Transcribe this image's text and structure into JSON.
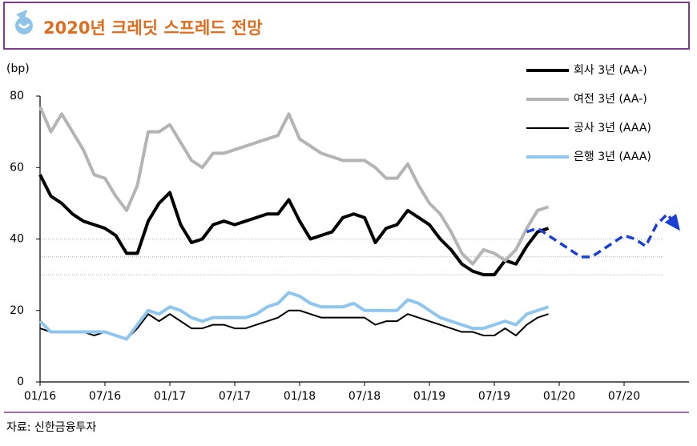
{
  "header": {
    "title": "2020년 크레딧 스프레드 전망"
  },
  "chart_data": {
    "type": "line",
    "y_label": "(bp)",
    "source": "자료: 신한금융투자",
    "categories": [
      "01/16",
      null,
      null,
      null,
      null,
      null,
      "07/16",
      null,
      null,
      null,
      null,
      null,
      "01/17",
      null,
      null,
      null,
      null,
      null,
      "07/17",
      null,
      null,
      null,
      null,
      null,
      "01/18",
      null,
      null,
      null,
      null,
      null,
      "07/18",
      null,
      null,
      null,
      null,
      null,
      "01/19",
      null,
      null,
      null,
      null,
      null,
      "07/19",
      null,
      null,
      null,
      null,
      null,
      "01/20",
      null,
      null,
      null,
      null,
      null,
      "07/20",
      null,
      null,
      null,
      null,
      null
    ],
    "ylim": [
      0,
      80
    ],
    "yticks": [
      0,
      20,
      40,
      60,
      80
    ],
    "ref_lines": [
      40,
      35,
      30
    ],
    "series": [
      {
        "name": "회사 3년 (AA-)",
        "color": "#000000",
        "values": [
          58,
          52,
          50,
          47,
          45,
          44,
          43,
          41,
          36,
          36,
          45,
          50,
          53,
          44,
          39,
          40,
          44,
          45,
          44,
          45,
          46,
          47,
          47,
          51,
          45,
          40,
          41,
          42,
          46,
          47,
          46,
          39,
          43,
          44,
          48,
          46,
          44,
          40,
          37,
          33,
          31,
          30,
          30,
          34,
          33,
          38,
          42,
          43,
          null,
          null,
          null,
          null,
          null,
          null,
          null,
          null,
          null,
          null,
          null,
          null
        ]
      },
      {
        "name": "여전 3년 (AA-)",
        "color": "#b4b4b4",
        "values": [
          77,
          70,
          75,
          70,
          65,
          58,
          57,
          52,
          48,
          55,
          70,
          70,
          72,
          67,
          62,
          60,
          64,
          64,
          65,
          66,
          67,
          68,
          69,
          75,
          68,
          66,
          64,
          63,
          62,
          62,
          62,
          60,
          57,
          57,
          61,
          55,
          50,
          47,
          42,
          36,
          33,
          37,
          36,
          34,
          37,
          43,
          48,
          49,
          null,
          null,
          null,
          null,
          null,
          null,
          null,
          null,
          null,
          null,
          null,
          null
        ]
      },
      {
        "name": "공사 3년 (AAA)",
        "color": "#000000",
        "values": [
          15,
          14,
          14,
          14,
          14,
          13,
          14,
          13,
          12,
          15,
          19,
          17,
          19,
          17,
          15,
          15,
          16,
          16,
          15,
          15,
          16,
          17,
          18,
          20,
          20,
          19,
          18,
          18,
          18,
          18,
          18,
          16,
          17,
          17,
          19,
          18,
          17,
          16,
          15,
          14,
          14,
          13,
          13,
          15,
          13,
          16,
          18,
          19,
          null,
          null,
          null,
          null,
          null,
          null,
          null,
          null,
          null,
          null,
          null,
          null
        ]
      },
      {
        "name": "은행 3년 (AAA)",
        "color": "#8fc6f0",
        "values": [
          17,
          14,
          14,
          14,
          14,
          14,
          14,
          13,
          12,
          16,
          20,
          19,
          21,
          20,
          18,
          17,
          18,
          18,
          18,
          18,
          19,
          21,
          22,
          25,
          24,
          22,
          21,
          21,
          21,
          22,
          20,
          20,
          20,
          20,
          23,
          22,
          20,
          18,
          17,
          16,
          15,
          15,
          16,
          17,
          16,
          19,
          20,
          21,
          null,
          null,
          null,
          null,
          null,
          null,
          null,
          null,
          null,
          null,
          null,
          null
        ]
      },
      {
        "color": "#1a3fd6",
        "values": [
          null,
          null,
          null,
          null,
          null,
          null,
          null,
          null,
          null,
          null,
          null,
          null,
          null,
          null,
          null,
          null,
          null,
          null,
          null,
          null,
          null,
          null,
          null,
          null,
          null,
          null,
          null,
          null,
          null,
          null,
          null,
          null,
          null,
          null,
          null,
          null,
          null,
          null,
          null,
          null,
          null,
          null,
          null,
          null,
          null,
          42,
          43,
          41,
          39,
          37,
          35,
          35,
          37,
          39,
          41,
          40,
          38,
          44,
          47,
          43
        ]
      }
    ]
  }
}
